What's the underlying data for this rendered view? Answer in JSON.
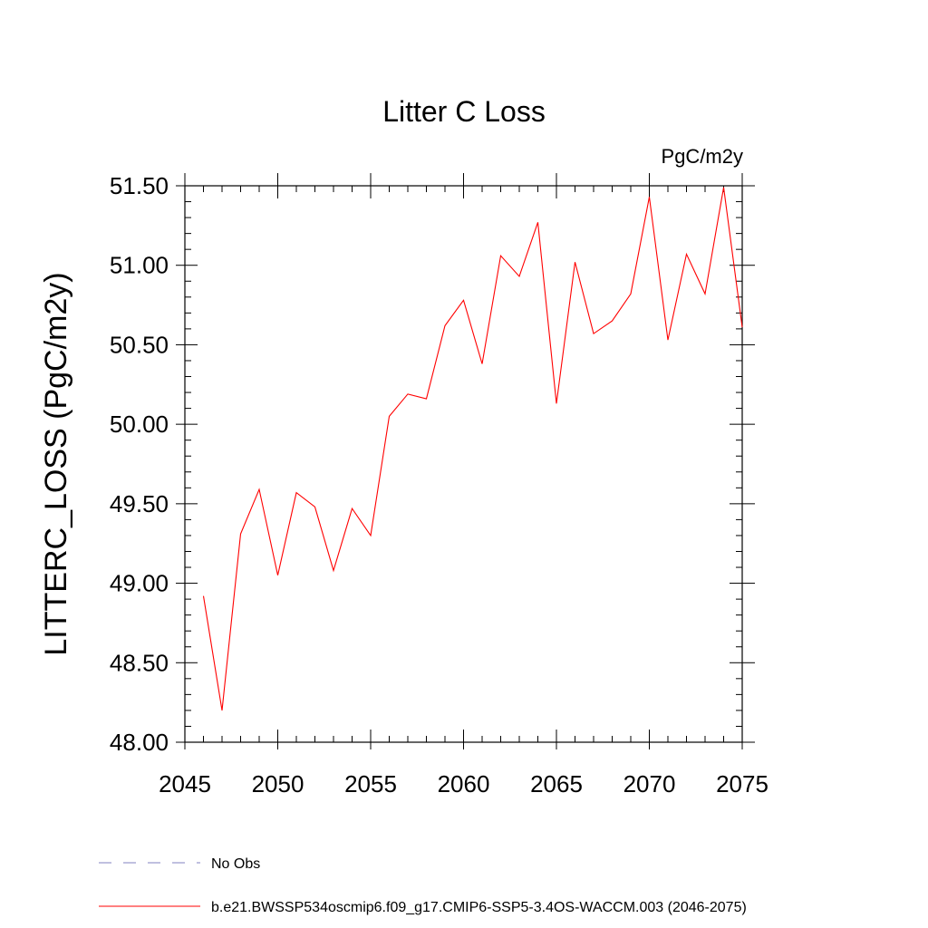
{
  "chart_data": {
    "type": "line",
    "title": "Litter C Loss",
    "units": "PgC/m2y",
    "ylabel": "LITTERC_LOSS  (PgC/m2y)",
    "xlabel": "",
    "xlim": [
      2045,
      2075
    ],
    "ylim": [
      48.0,
      51.5
    ],
    "x_ticks": [
      2045,
      2050,
      2055,
      2060,
      2065,
      2070,
      2075
    ],
    "y_ticks": [
      48.0,
      48.5,
      49.0,
      49.5,
      50.0,
      50.5,
      51.0,
      51.5
    ],
    "y_tick_labels": [
      "48.00",
      "48.50",
      "49.00",
      "49.50",
      "50.00",
      "50.50",
      "51.00",
      "51.50"
    ],
    "grid": false,
    "legend_position": "bottom",
    "series": [
      {
        "name": "b.e21.BWSSP534oscmip6.f09_g17.CMIP6-SSP5-3.4OS-WACCM.003 (2046-2075)",
        "color": "#ff0000",
        "style": "solid",
        "x": [
          2046,
          2047,
          2048,
          2049,
          2050,
          2051,
          2052,
          2053,
          2054,
          2055,
          2056,
          2057,
          2058,
          2059,
          2060,
          2061,
          2062,
          2063,
          2064,
          2065,
          2066,
          2067,
          2068,
          2069,
          2070,
          2071,
          2072,
          2073,
          2074,
          2075
        ],
        "y": [
          48.92,
          48.2,
          49.31,
          49.59,
          49.05,
          49.57,
          49.48,
          49.08,
          49.47,
          49.3,
          50.05,
          50.19,
          50.16,
          50.62,
          50.78,
          50.38,
          51.06,
          50.93,
          51.27,
          50.13,
          51.02,
          50.57,
          50.65,
          50.82,
          51.43,
          50.53,
          51.07,
          50.82,
          51.49,
          50.61
        ]
      }
    ],
    "legend": [
      {
        "label": "No Obs",
        "color": "#8080c0",
        "style": "dashed"
      },
      {
        "label": "b.e21.BWSSP534oscmip6.f09_g17.CMIP6-SSP5-3.4OS-WACCM.003 (2046-2075)",
        "color": "#ff0000",
        "style": "solid"
      }
    ]
  }
}
